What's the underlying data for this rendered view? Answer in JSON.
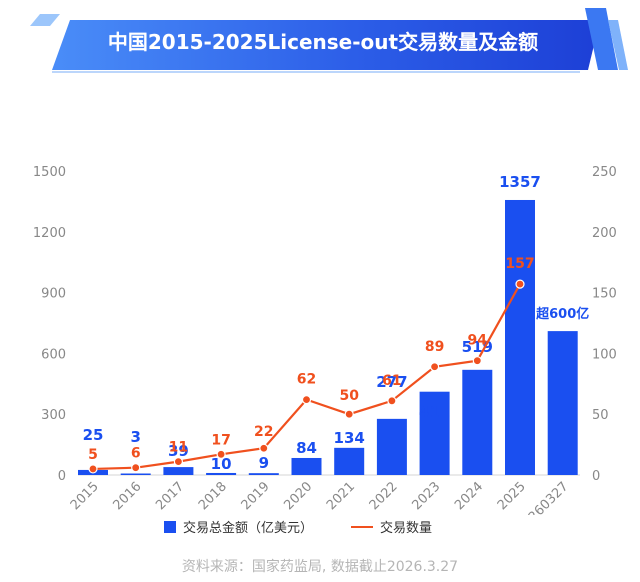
{
  "banner": {
    "title": "中国2015-2025License-out交易数量及金额"
  },
  "chart_data": {
    "type": "bar+line",
    "categories": [
      "2015",
      "2016",
      "2017",
      "2018",
      "2019",
      "2020",
      "2021",
      "2022",
      "2023",
      "2024",
      "2025",
      "20260327"
    ],
    "series": [
      {
        "name": "交易总金额（亿美元）",
        "type": "bar",
        "axis": "left",
        "values": [
          25,
          3,
          39,
          10,
          9,
          84,
          134,
          277,
          411,
          519,
          1357,
          710
        ],
        "labels": [
          "25",
          "3",
          "39",
          "10",
          "9",
          "84",
          "134",
          "277",
          "411",
          "519",
          "1357",
          "超600亿"
        ],
        "color": "#1a4ff0"
      },
      {
        "name": "交易数量",
        "type": "line",
        "axis": "right",
        "values": [
          5,
          6,
          11,
          17,
          22,
          62,
          50,
          61,
          89,
          94,
          157,
          null
        ],
        "labels": [
          "5",
          "6",
          "11",
          "17",
          "22",
          "62",
          "50",
          "61",
          "89",
          "94",
          "157",
          ""
        ],
        "color": "#f0501e"
      }
    ],
    "y_left": {
      "ylim": [
        0,
        1500
      ],
      "ticks": [
        "0",
        "300",
        "600",
        "900",
        "1200",
        "1500"
      ]
    },
    "y_right": {
      "ylim": [
        0,
        250
      ],
      "ticks": [
        "0",
        "50",
        "100",
        "150",
        "200",
        "250"
      ]
    },
    "legend": {
      "placement": "bottom"
    },
    "grid": false
  },
  "legend": {
    "bar_label": "交易总金额（亿美元）",
    "line_label": "交易数量"
  },
  "footer": {
    "source": "资料来源：国家药监局, 数据截止2026.3.27"
  },
  "colors": {
    "bar": "#1a4ff0",
    "line": "#f0501e",
    "axis_text": "#888888",
    "bar_label": "#1a4ff0",
    "line_label": "#f0501e"
  }
}
